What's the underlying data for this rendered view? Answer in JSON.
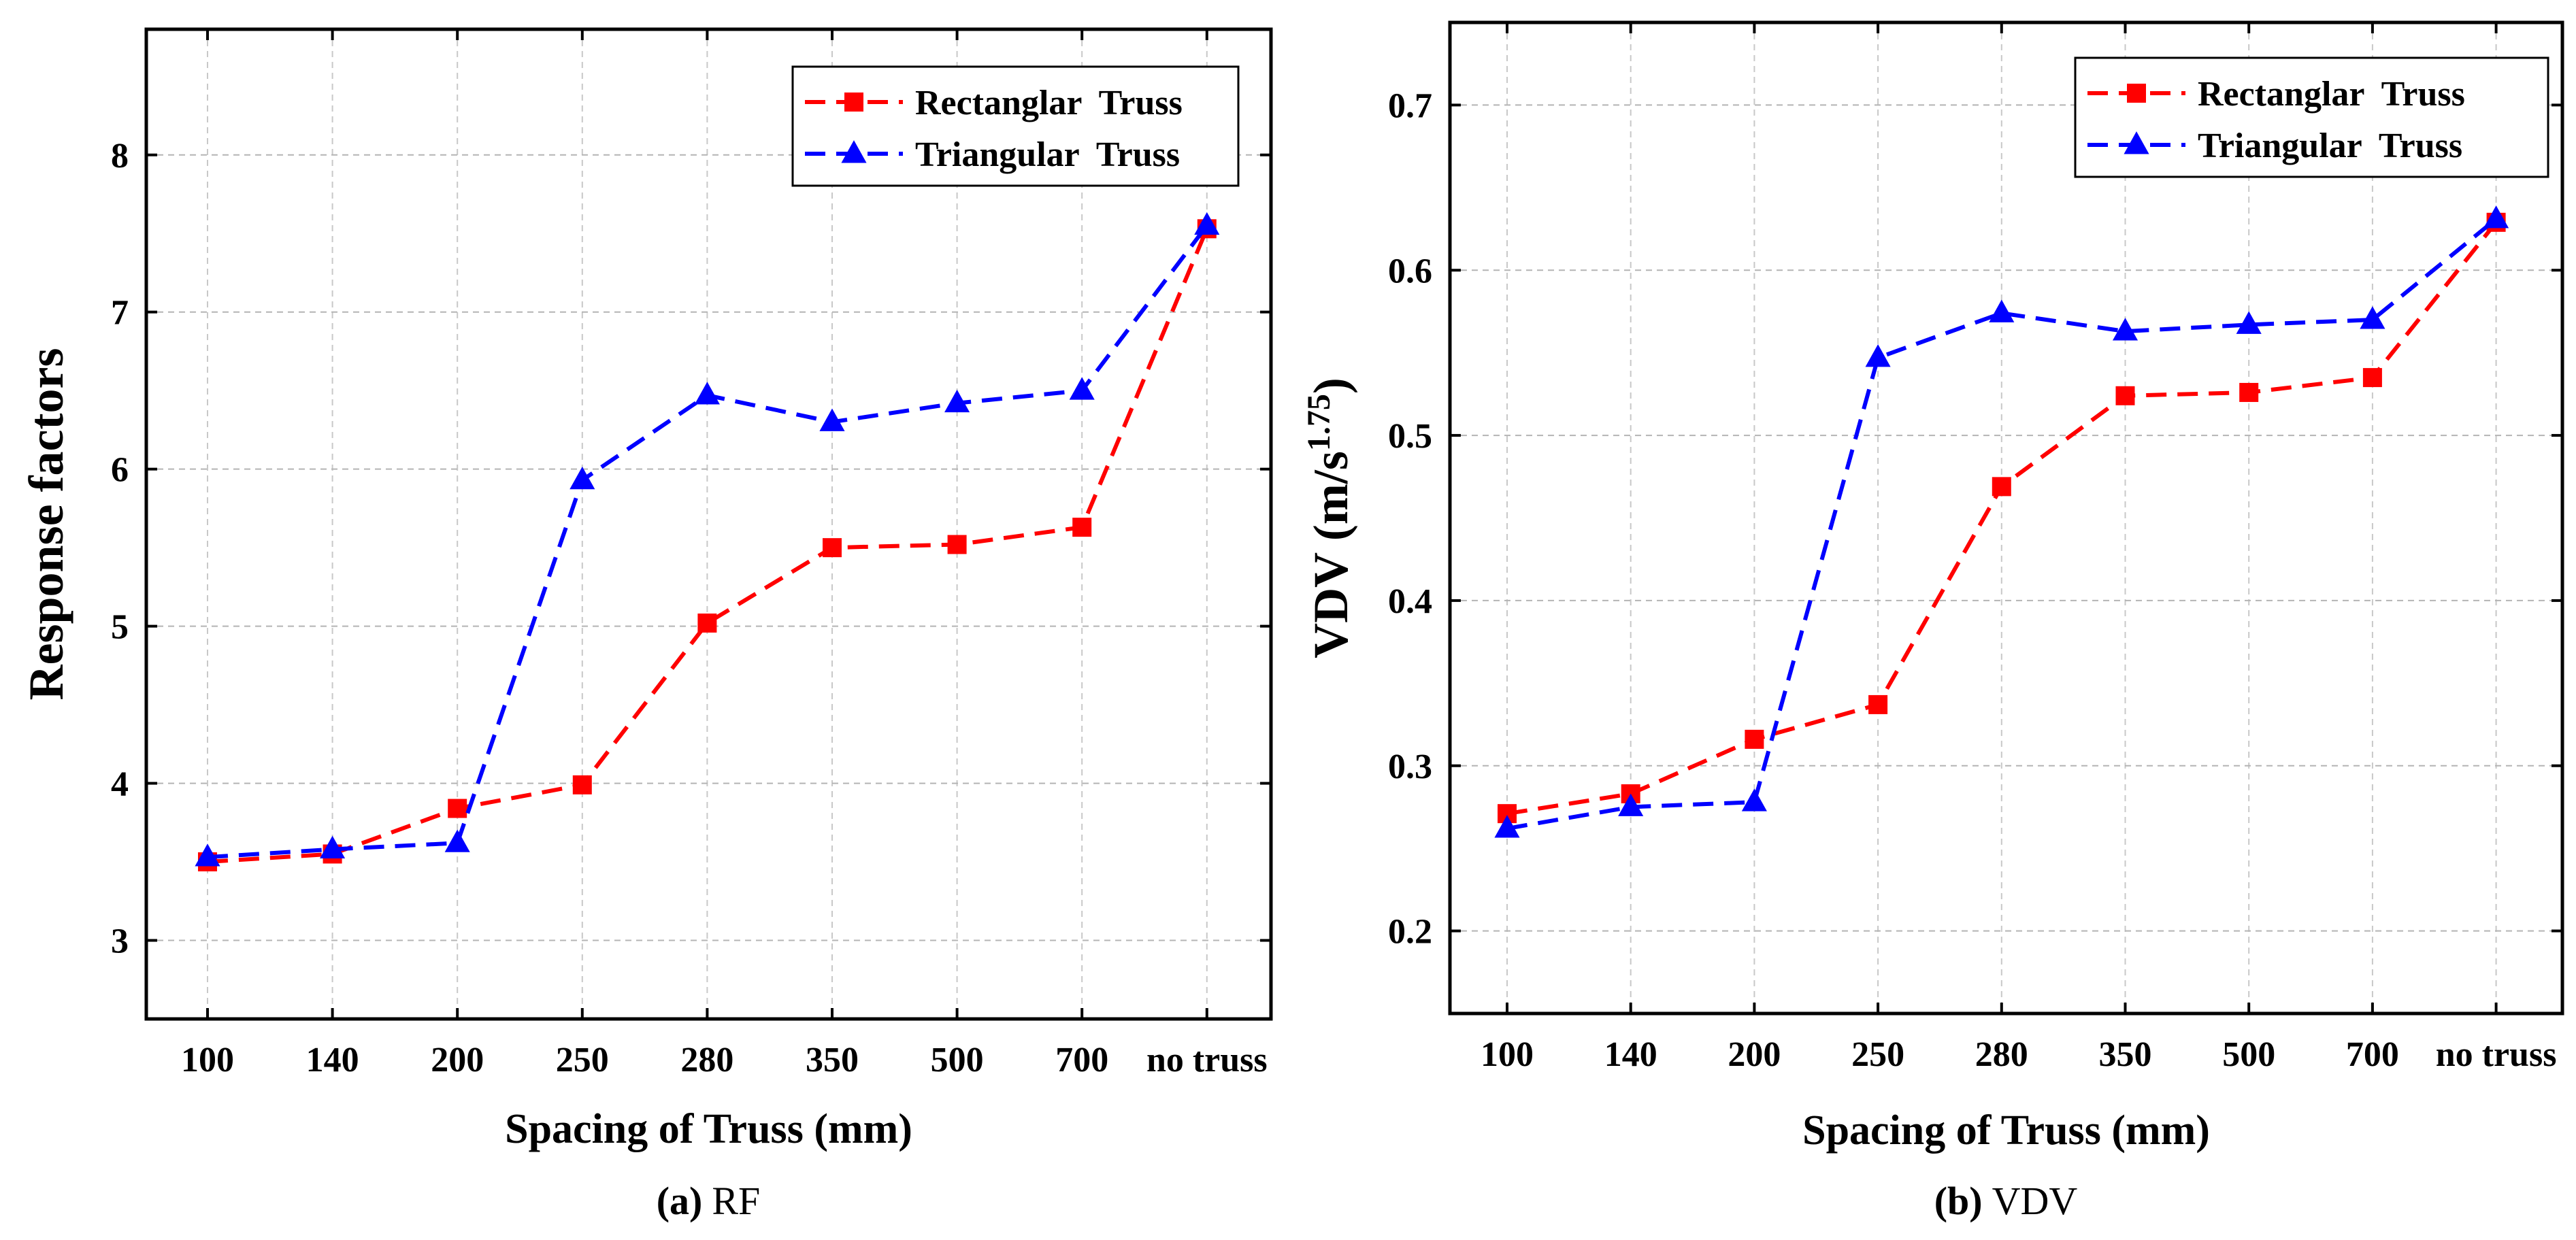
{
  "chart_data": [
    {
      "type": "line",
      "caption_letter": "(a)",
      "caption_text": "RF",
      "categories": [
        "100",
        "140",
        "200",
        "250",
        "280",
        "350",
        "500",
        "700",
        "no truss"
      ],
      "ylabel": "Response factors",
      "xlabel": "Spacing of Truss (mm)",
      "ylim": [
        2.5,
        8.8
      ],
      "yticks": [
        "3",
        "4",
        "5",
        "6",
        "7",
        "8"
      ],
      "grid": true,
      "legend_position": "top-right",
      "series": [
        {
          "name": "Rectanglar  Truss",
          "marker": "square",
          "color": "#ff0000",
          "values": [
            3.5,
            3.55,
            3.84,
            3.99,
            5.02,
            5.5,
            5.52,
            5.63,
            7.53
          ]
        },
        {
          "name": "Triangular  Truss",
          "marker": "triangle",
          "color": "#0000ff",
          "values": [
            3.53,
            3.58,
            3.62,
            5.93,
            6.47,
            6.3,
            6.42,
            6.5,
            7.55
          ]
        }
      ]
    },
    {
      "type": "line",
      "caption_letter": "(b)",
      "caption_text": "VDV",
      "categories": [
        "100",
        "140",
        "200",
        "250",
        "280",
        "350",
        "500",
        "700",
        "no truss"
      ],
      "ylabel_main": "VDV (m/s",
      "ylabel_sup": "1.75",
      "ylabel_end": ")",
      "xlabel": "Spacing of Truss (mm)",
      "ylim": [
        0.15,
        0.75
      ],
      "yticks": [
        "0.2",
        "0.3",
        "0.4",
        "0.5",
        "0.6",
        "0.7"
      ],
      "grid": true,
      "legend_position": "top-right",
      "series": [
        {
          "name": "Rectanglar  Truss",
          "marker": "square",
          "color": "#ff0000",
          "values": [
            0.271,
            0.283,
            0.316,
            0.337,
            0.469,
            0.524,
            0.526,
            0.535,
            0.629
          ]
        },
        {
          "name": "Triangular  Truss",
          "marker": "triangle",
          "color": "#0000ff",
          "values": [
            0.262,
            0.275,
            0.278,
            0.547,
            0.574,
            0.563,
            0.567,
            0.57,
            0.631
          ]
        }
      ]
    }
  ]
}
